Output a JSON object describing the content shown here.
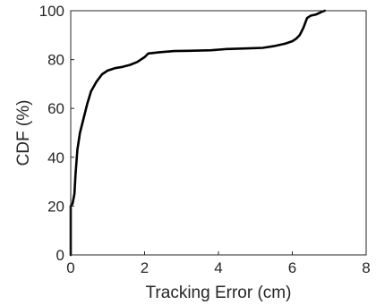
{
  "chart_data": {
    "type": "line",
    "xlabel": "Tracking Error (cm)",
    "ylabel": "CDF (%)",
    "xlim": [
      0,
      8
    ],
    "ylim": [
      0,
      100
    ],
    "xticks": [
      "0",
      "2",
      "4",
      "6",
      "8"
    ],
    "yticks": [
      "0",
      "20",
      "40",
      "60",
      "80",
      "100"
    ],
    "grid": false,
    "legend": "none",
    "series": [
      {
        "color": "#000000",
        "points": [
          [
            0.0,
            0
          ],
          [
            0.0,
            20
          ],
          [
            0.05,
            21
          ],
          [
            0.1,
            25
          ],
          [
            0.13,
            33
          ],
          [
            0.18,
            43
          ],
          [
            0.25,
            50
          ],
          [
            0.35,
            56
          ],
          [
            0.45,
            62
          ],
          [
            0.55,
            67
          ],
          [
            0.7,
            71
          ],
          [
            0.85,
            74
          ],
          [
            1.0,
            75.5
          ],
          [
            1.2,
            76.5
          ],
          [
            1.4,
            77
          ],
          [
            1.6,
            77.8
          ],
          [
            1.8,
            79
          ],
          [
            2.0,
            81
          ],
          [
            2.1,
            82.5
          ],
          [
            2.4,
            83
          ],
          [
            2.8,
            83.5
          ],
          [
            3.2,
            83.6
          ],
          [
            3.8,
            83.8
          ],
          [
            4.2,
            84.3
          ],
          [
            4.8,
            84.6
          ],
          [
            5.2,
            84.8
          ],
          [
            5.5,
            85.5
          ],
          [
            5.8,
            86.5
          ],
          [
            6.0,
            87.5
          ],
          [
            6.1,
            88.5
          ],
          [
            6.2,
            90
          ],
          [
            6.3,
            93
          ],
          [
            6.4,
            97
          ],
          [
            6.5,
            98
          ],
          [
            6.65,
            98.5
          ],
          [
            6.75,
            99.2
          ],
          [
            6.8,
            99.6
          ],
          [
            6.88,
            100
          ]
        ]
      }
    ]
  }
}
